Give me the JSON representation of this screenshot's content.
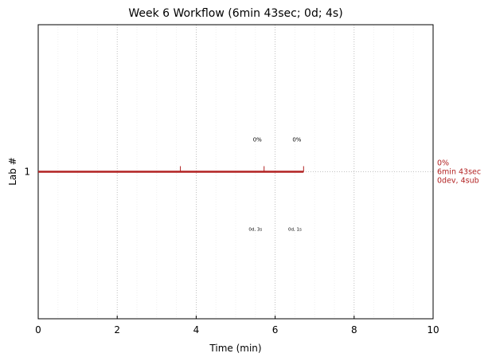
{
  "chart_data": {
    "type": "timeline",
    "title": "Week 6 Workflow (6min 43sec; 0d; 4s)",
    "xlabel": "Time (min)",
    "ylabel": "Lab #",
    "xlim": [
      0,
      10
    ],
    "xticks": [
      0,
      2,
      4,
      6,
      8,
      10
    ],
    "grid": true,
    "rows": [
      {
        "label": "1",
        "start": 0,
        "end": 6.72,
        "color": "#b22222",
        "events": [
          3.6,
          5.72,
          6.72
        ],
        "pct_labels": [
          {
            "x": 5.55,
            "text": "0%"
          },
          {
            "x": 6.55,
            "text": "0%"
          }
        ],
        "sub_labels": [
          {
            "x": 5.5,
            "text": "0d, 3s"
          },
          {
            "x": 6.5,
            "text": "0d, 1s"
          }
        ],
        "summary": [
          "0%",
          "6min 43sec",
          "0dev, 4sub"
        ]
      }
    ]
  }
}
